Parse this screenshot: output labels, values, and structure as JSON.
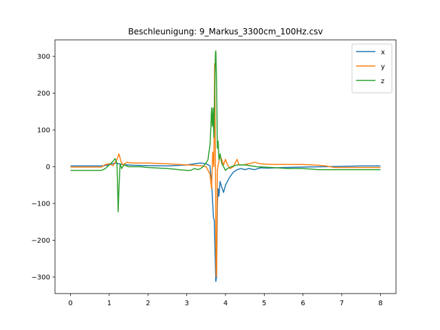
{
  "chart_data": {
    "type": "line",
    "title": "Beschleunigung: 9_Markus_3300cm_100Hz.csv",
    "xlabel": "",
    "ylabel": "",
    "xlim": [
      -0.4,
      8.4
    ],
    "ylim": [
      -345,
      345
    ],
    "xticks": [
      0,
      1,
      2,
      3,
      4,
      5,
      6,
      7,
      8
    ],
    "yticks": [
      -300,
      -200,
      -100,
      0,
      100,
      200,
      300
    ],
    "grid": false,
    "legend": "top-right",
    "series": [
      {
        "name": "x",
        "color": "#1f77b4",
        "points": [
          [
            0,
            2
          ],
          [
            0.8,
            2
          ],
          [
            1.0,
            5
          ],
          [
            1.15,
            10
          ],
          [
            1.25,
            8
          ],
          [
            1.35,
            6
          ],
          [
            1.6,
            4
          ],
          [
            2.0,
            3
          ],
          [
            2.5,
            2
          ],
          [
            3.0,
            5
          ],
          [
            3.2,
            8
          ],
          [
            3.35,
            10
          ],
          [
            3.5,
            8
          ],
          [
            3.6,
            2
          ],
          [
            3.65,
            -60
          ],
          [
            3.69,
            -140
          ],
          [
            3.71,
            -145
          ],
          [
            3.73,
            -230
          ],
          [
            3.75,
            -312
          ],
          [
            3.77,
            -300
          ],
          [
            3.79,
            -100
          ],
          [
            3.81,
            -60
          ],
          [
            3.83,
            -80
          ],
          [
            3.86,
            -40
          ],
          [
            3.9,
            -55
          ],
          [
            3.95,
            -70
          ],
          [
            4.0,
            -50
          ],
          [
            4.1,
            -30
          ],
          [
            4.2,
            -15
          ],
          [
            4.3,
            -8
          ],
          [
            4.4,
            -5
          ],
          [
            4.5,
            -8
          ],
          [
            4.6,
            -5
          ],
          [
            4.75,
            -8
          ],
          [
            4.9,
            -3
          ],
          [
            5.1,
            -4
          ],
          [
            5.5,
            -2
          ],
          [
            6.0,
            -1
          ],
          [
            6.5,
            0
          ],
          [
            7.0,
            1
          ],
          [
            7.5,
            2
          ],
          [
            8.0,
            2
          ]
        ]
      },
      {
        "name": "y",
        "color": "#ff7f0e",
        "points": [
          [
            0,
            -1
          ],
          [
            0.8,
            -1
          ],
          [
            0.9,
            6
          ],
          [
            1.0,
            8
          ],
          [
            1.1,
            3
          ],
          [
            1.2,
            20
          ],
          [
            1.25,
            35
          ],
          [
            1.3,
            15
          ],
          [
            1.35,
            5
          ],
          [
            1.45,
            12
          ],
          [
            1.6,
            10
          ],
          [
            2.0,
            10
          ],
          [
            2.5,
            8
          ],
          [
            3.0,
            5
          ],
          [
            3.2,
            4
          ],
          [
            3.4,
            2
          ],
          [
            3.5,
            0
          ],
          [
            3.6,
            -20
          ],
          [
            3.64,
            -60
          ],
          [
            3.67,
            40
          ],
          [
            3.7,
            0
          ],
          [
            3.72,
            280
          ],
          [
            3.74,
            20
          ],
          [
            3.75,
            -200
          ],
          [
            3.76,
            -300
          ],
          [
            3.77,
            -280
          ],
          [
            3.79,
            -10
          ],
          [
            3.82,
            10
          ],
          [
            3.86,
            30
          ],
          [
            3.9,
            20
          ],
          [
            3.95,
            5
          ],
          [
            4.0,
            20
          ],
          [
            4.05,
            5
          ],
          [
            4.12,
            -5
          ],
          [
            4.2,
            0
          ],
          [
            4.3,
            20
          ],
          [
            4.35,
            5
          ],
          [
            4.45,
            5
          ],
          [
            4.6,
            8
          ],
          [
            4.75,
            12
          ],
          [
            4.9,
            8
          ],
          [
            5.2,
            6
          ],
          [
            5.6,
            6
          ],
          [
            6.0,
            6
          ],
          [
            6.4,
            4
          ],
          [
            6.6,
            2
          ],
          [
            6.8,
            -2
          ],
          [
            7.0,
            -2
          ],
          [
            7.5,
            -2
          ],
          [
            8.0,
            -2
          ]
        ]
      },
      {
        "name": "z",
        "color": "#2ca02c",
        "points": [
          [
            0,
            -10
          ],
          [
            0.8,
            -10
          ],
          [
            0.9,
            -5
          ],
          [
            1.0,
            5
          ],
          [
            1.1,
            15
          ],
          [
            1.15,
            22
          ],
          [
            1.2,
            10
          ],
          [
            1.23,
            -123
          ],
          [
            1.25,
            -60
          ],
          [
            1.28,
            8
          ],
          [
            1.32,
            -5
          ],
          [
            1.38,
            5
          ],
          [
            1.5,
            0
          ],
          [
            1.8,
            0
          ],
          [
            2.0,
            -2
          ],
          [
            2.5,
            -5
          ],
          [
            3.0,
            -10
          ],
          [
            3.1,
            -10
          ],
          [
            3.2,
            -5
          ],
          [
            3.3,
            -8
          ],
          [
            3.4,
            -2
          ],
          [
            3.5,
            10
          ],
          [
            3.55,
            20
          ],
          [
            3.6,
            60
          ],
          [
            3.62,
            100
          ],
          [
            3.64,
            160
          ],
          [
            3.66,
            110
          ],
          [
            3.68,
            160
          ],
          [
            3.7,
            80
          ],
          [
            3.72,
            200
          ],
          [
            3.74,
            310
          ],
          [
            3.75,
            315
          ],
          [
            3.77,
            230
          ],
          [
            3.79,
            50
          ],
          [
            3.81,
            70
          ],
          [
            3.83,
            20
          ],
          [
            3.86,
            35
          ],
          [
            3.9,
            10
          ],
          [
            3.95,
            0
          ],
          [
            4.0,
            -10
          ],
          [
            4.05,
            -5
          ],
          [
            4.15,
            0
          ],
          [
            4.3,
            5
          ],
          [
            4.5,
            5
          ],
          [
            4.8,
            0
          ],
          [
            5.2,
            -2
          ],
          [
            5.6,
            -5
          ],
          [
            6.0,
            -5
          ],
          [
            6.4,
            -8
          ],
          [
            6.8,
            -8
          ],
          [
            7.2,
            -8
          ],
          [
            7.6,
            -8
          ],
          [
            8.0,
            -8
          ]
        ]
      }
    ]
  }
}
